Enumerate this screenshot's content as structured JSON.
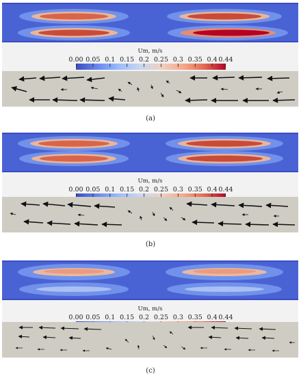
{
  "colorbar": {
    "title": "Um, m/s",
    "ticks": [
      "0.00",
      "0.05",
      "0.1",
      "0.15",
      "0.2",
      "0.25",
      "0.3",
      "0.35",
      "0.4",
      "0.44"
    ],
    "tick_values": [
      0.0,
      0.05,
      0.1,
      0.15,
      0.2,
      0.25,
      0.3,
      0.35,
      0.4,
      0.44
    ],
    "range": [
      0.0,
      0.44
    ],
    "colormap": [
      "#3b4cc0",
      "#6788ee",
      "#9abbff",
      "#c9d7f0",
      "#edd1c2",
      "#f7a889",
      "#e26952",
      "#b40426"
    ]
  },
  "panels": [
    {
      "caption": "(a)",
      "peak_velocity": 0.44
    },
    {
      "caption": "(b)",
      "peak_velocity": 0.42
    },
    {
      "caption": "(c)",
      "peak_velocity": 0.31
    }
  ]
}
